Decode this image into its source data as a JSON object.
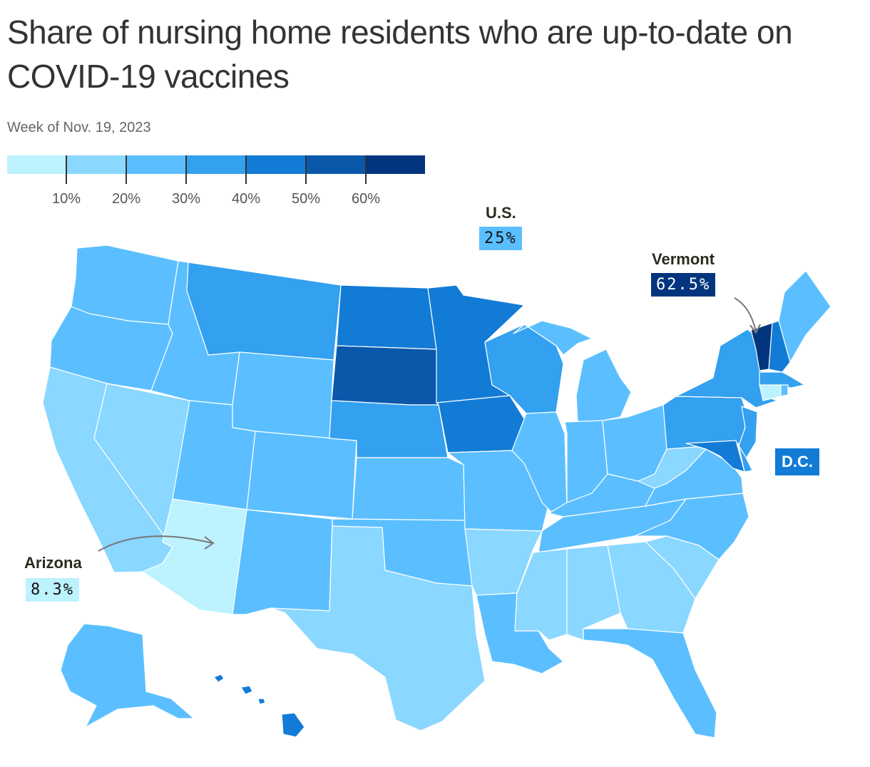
{
  "header": {
    "title": "Share of nursing home residents who are up-to-date on COVID-19 vaccines",
    "subtitle": "Week of Nov. 19, 2023"
  },
  "legend": {
    "colors": [
      "#bdf2ff",
      "#8ad7ff",
      "#5bbfff",
      "#33a0f0",
      "#127bd6",
      "#0b58ab",
      "#03357e"
    ],
    "ticks": [
      "10%",
      "20%",
      "30%",
      "40%",
      "50%",
      "60%"
    ]
  },
  "callouts": {
    "us": {
      "name": "U.S.",
      "value": "25%"
    },
    "vermont": {
      "name": "Vermont",
      "value": "62.5%"
    },
    "arizona": {
      "name": "Arizona",
      "value": "8.3%"
    },
    "dc": {
      "name": "D.C."
    }
  },
  "chart_data": {
    "type": "choropleth",
    "bins": [
      {
        "range": "<10%",
        "color": "#bdf2ff"
      },
      {
        "range": "10-20%",
        "color": "#8ad7ff"
      },
      {
        "range": "20-30%",
        "color": "#5bbfff"
      },
      {
        "range": "30-40%",
        "color": "#33a0f0"
      },
      {
        "range": "40-50%",
        "color": "#127bd6"
      },
      {
        "range": "50-60%",
        "color": "#0b58ab"
      },
      {
        "range": ">60%",
        "color": "#03357e"
      }
    ],
    "labeled_values": [
      {
        "region": "U.S.",
        "value": 25
      },
      {
        "region": "Vermont",
        "value": 62.5
      },
      {
        "region": "Arizona",
        "value": 8.3
      }
    ],
    "states": [
      {
        "id": "WA",
        "bin": 2
      },
      {
        "id": "OR",
        "bin": 2
      },
      {
        "id": "CA",
        "bin": 1
      },
      {
        "id": "NV",
        "bin": 1
      },
      {
        "id": "ID",
        "bin": 2
      },
      {
        "id": "MT",
        "bin": 3
      },
      {
        "id": "WY",
        "bin": 2
      },
      {
        "id": "UT",
        "bin": 2
      },
      {
        "id": "AZ",
        "bin": 0
      },
      {
        "id": "CO",
        "bin": 2
      },
      {
        "id": "NM",
        "bin": 2
      },
      {
        "id": "ND",
        "bin": 4
      },
      {
        "id": "SD",
        "bin": 5
      },
      {
        "id": "NE",
        "bin": 3
      },
      {
        "id": "KS",
        "bin": 2
      },
      {
        "id": "OK",
        "bin": 2
      },
      {
        "id": "TX",
        "bin": 1
      },
      {
        "id": "MN",
        "bin": 4
      },
      {
        "id": "IA",
        "bin": 4
      },
      {
        "id": "MO",
        "bin": 2
      },
      {
        "id": "AR",
        "bin": 1
      },
      {
        "id": "LA",
        "bin": 2
      },
      {
        "id": "WI",
        "bin": 3
      },
      {
        "id": "IL",
        "bin": 2
      },
      {
        "id": "MI",
        "bin": 2
      },
      {
        "id": "IN",
        "bin": 2
      },
      {
        "id": "OH",
        "bin": 2
      },
      {
        "id": "KY",
        "bin": 2
      },
      {
        "id": "TN",
        "bin": 2
      },
      {
        "id": "MS",
        "bin": 1
      },
      {
        "id": "AL",
        "bin": 1
      },
      {
        "id": "GA",
        "bin": 1
      },
      {
        "id": "FL",
        "bin": 2
      },
      {
        "id": "SC",
        "bin": 1
      },
      {
        "id": "NC",
        "bin": 2
      },
      {
        "id": "VA",
        "bin": 2
      },
      {
        "id": "WV",
        "bin": 1
      },
      {
        "id": "PA",
        "bin": 3
      },
      {
        "id": "NY",
        "bin": 3
      },
      {
        "id": "VT",
        "bin": 6
      },
      {
        "id": "NH",
        "bin": 4
      },
      {
        "id": "ME",
        "bin": 2
      },
      {
        "id": "MA",
        "bin": 3
      },
      {
        "id": "CT",
        "bin": 0
      },
      {
        "id": "RI",
        "bin": 2
      },
      {
        "id": "NJ",
        "bin": 3
      },
      {
        "id": "DE",
        "bin": 3
      },
      {
        "id": "MD",
        "bin": 4
      },
      {
        "id": "DC",
        "bin": 4
      },
      {
        "id": "AK",
        "bin": 2
      },
      {
        "id": "HI",
        "bin": 4
      }
    ]
  }
}
